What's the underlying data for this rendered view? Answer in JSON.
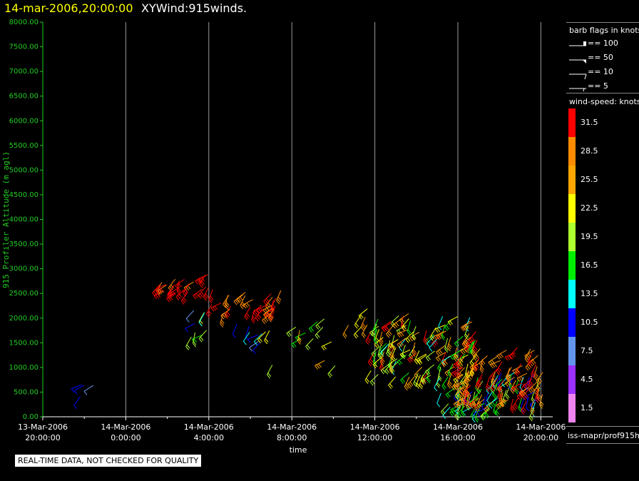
{
  "header": {
    "date": "14-mar-2006,20:00:00",
    "product": "XYWind:915winds."
  },
  "notice": "REAL-TIME DATA, NOT CHECKED FOR QUALITY",
  "barb_legend": {
    "title": "barb flags in knots",
    "items": [
      "== 100",
      "== 50",
      "== 10",
      "== 5"
    ]
  },
  "colorbar": {
    "title": "wind-speed: knots",
    "labels": [
      "31.5",
      "28.5",
      "25.5",
      "22.5",
      "19.5",
      "16.5",
      "13.5",
      "10.5",
      "7.5",
      "4.5",
      "1.5"
    ],
    "colors": [
      "#ff0000",
      "#ff8c00",
      "#ffa500",
      "#ffff00",
      "#adff2f",
      "#00ee00",
      "#00ffff",
      "#0000ff",
      "#6495ed",
      "#9b30ff",
      "#ee82ee"
    ]
  },
  "source": "iss-mapr/prof915h",
  "chart_data": {
    "type": "scatter",
    "title": "XYWind:915winds.",
    "xlabel": "time",
    "ylabel": "915 Profiler Altitude (m agl)",
    "ylim": [
      0,
      8000
    ],
    "xlim_hours": [
      0,
      24.3
    ],
    "y_ticks": [
      "8000.00",
      "7500.00",
      "7000.00",
      "6500.00",
      "6000.00",
      "5500.00",
      "5000.00",
      "4500.00",
      "4000.00",
      "3500.00",
      "3000.00",
      "2500.00",
      "2000.00",
      "1500.00",
      "1000.00",
      "500.00",
      "0.00"
    ],
    "x_ticks": [
      {
        "hour": 0,
        "date": "13-Mar-2006",
        "time": "20:00:00"
      },
      {
        "hour": 4,
        "date": "14-Mar-2006",
        "time": "0:00:00"
      },
      {
        "hour": 8,
        "date": "14-Mar-2006",
        "time": "4:00:00"
      },
      {
        "hour": 12,
        "date": "14-Mar-2006",
        "time": "8:00:00"
      },
      {
        "hour": 16,
        "date": "14-Mar-2006",
        "time": "12:00:00"
      },
      {
        "hour": 20,
        "date": "14-Mar-2006",
        "time": "16:00:00"
      },
      {
        "hour": 24,
        "date": "14-Mar-2006",
        "time": "20:00:00"
      }
    ],
    "grid": "vertical",
    "clusters": [
      {
        "t": [
          1.8,
          2.5
        ],
        "z": [
          400,
          700
        ],
        "speed": [
          7,
          12
        ],
        "n": 4
      },
      {
        "t": [
          5.6,
          8.0
        ],
        "z": [
          2500,
          2900
        ],
        "speed": [
          29,
          33
        ],
        "n": 22
      },
      {
        "t": [
          7.0,
          8.0
        ],
        "z": [
          1600,
          2300
        ],
        "speed": [
          8,
          22
        ],
        "n": 8
      },
      {
        "t": [
          8.0,
          11.5
        ],
        "z": [
          2100,
          2600
        ],
        "speed": [
          27,
          33
        ],
        "n": 28
      },
      {
        "t": [
          9.3,
          11.0
        ],
        "z": [
          1500,
          1900
        ],
        "speed": [
          8,
          14
        ],
        "n": 7
      },
      {
        "t": [
          10.6,
          14.5
        ],
        "z": [
          1000,
          2000
        ],
        "speed": [
          16,
          26
        ],
        "n": 14
      },
      {
        "t": [
          14.5,
          15.8
        ],
        "z": [
          1800,
          2200
        ],
        "speed": [
          20,
          29
        ],
        "n": 6
      },
      {
        "t": [
          15.8,
          21.0
        ],
        "z": [
          800,
          2100
        ],
        "speed": [
          14,
          33
        ],
        "n": 130
      },
      {
        "t": [
          19.0,
          24.0
        ],
        "z": [
          150,
          900
        ],
        "speed": [
          9,
          20
        ],
        "n": 75
      },
      {
        "t": [
          20.0,
          24.2
        ],
        "z": [
          300,
          1400
        ],
        "speed": [
          25,
          33
        ],
        "n": 80
      }
    ]
  }
}
